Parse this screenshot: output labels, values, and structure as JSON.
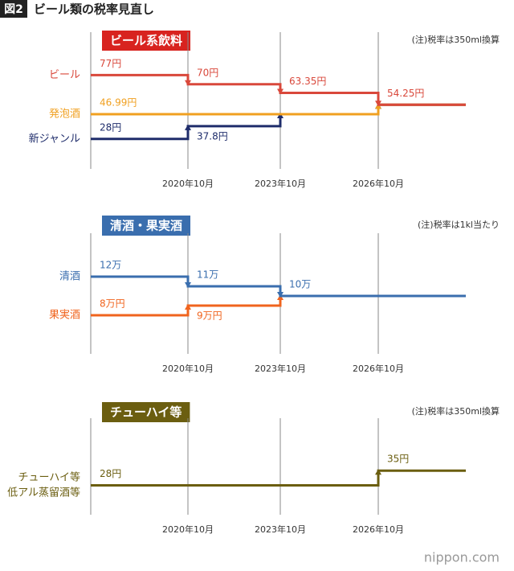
{
  "figure_label": "図2",
  "title": "ビール類の税率見直し",
  "source": "nippon.com",
  "chart_data": [
    {
      "type": "step",
      "title": "ビール系飲料",
      "title_color": "#d8231f",
      "note": "(注)税率は350ml換算",
      "categories": [
        null,
        "2020年10月",
        "2023年10月",
        "2026年10月"
      ],
      "ylim": [
        5,
        110
      ],
      "series": [
        {
          "name": [
            "新ジャンル"
          ],
          "color": "#1f2d6b",
          "values": [
            28,
            37.8,
            46.99,
            54.25
          ],
          "value_labels": [
            "28円",
            "37.8円",
            null,
            null
          ]
        },
        {
          "name": [
            "発泡酒"
          ],
          "color": "#f0a020",
          "values": [
            46.99,
            46.99,
            46.99,
            54.25
          ],
          "value_labels": [
            "46.99円",
            null,
            null,
            null
          ]
        },
        {
          "name": [
            "ビール"
          ],
          "color": "#d9483b",
          "values": [
            77,
            70,
            63.35,
            54.25
          ],
          "value_labels": [
            "77円",
            "70円",
            "63.35円",
            "54.25円"
          ]
        }
      ]
    },
    {
      "type": "step",
      "title": "清酒・果実酒",
      "title_color": "#3a6eae",
      "note": "(注)税率は1kl当たり",
      "categories": [
        null,
        "2020年10月",
        "2023年10月",
        "2026年10月"
      ],
      "ylim": [
        4,
        16.5
      ],
      "series": [
        {
          "name": [
            "果実酒"
          ],
          "color": "#f0641e",
          "values": [
            8,
            9,
            10,
            10
          ],
          "value_labels": [
            "8万円",
            "9万円",
            null,
            null
          ]
        },
        {
          "name": [
            "清酒"
          ],
          "color": "#3a6eae",
          "values": [
            12,
            11,
            10,
            10
          ],
          "value_labels": [
            "12万",
            "11万",
            "10万",
            null
          ]
        }
      ]
    },
    {
      "type": "step",
      "title": "チューハイ等",
      "title_color": "#6b5e10",
      "note": "(注)税率は350ml換算",
      "categories": [
        null,
        "2020年10月",
        "2023年10月",
        "2026年10月"
      ],
      "ylim": [
        14,
        60
      ],
      "series": [
        {
          "name": [
            "チューハイ等",
            "低アル蒸留酒等"
          ],
          "color": "#6b5e10",
          "values": [
            28,
            28,
            28,
            35
          ],
          "value_labels": [
            "28円",
            null,
            null,
            "35円"
          ]
        }
      ]
    }
  ]
}
